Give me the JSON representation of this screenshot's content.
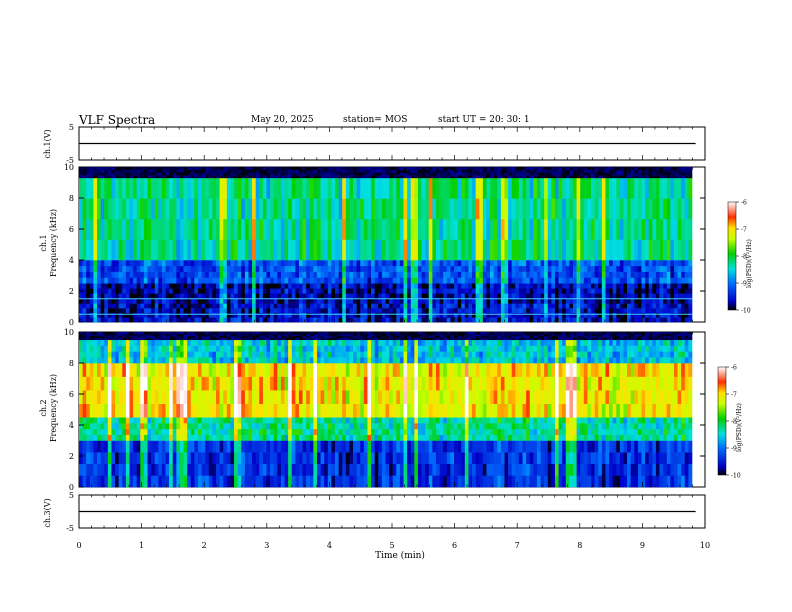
{
  "header": {
    "title": "VLF Spectra",
    "date": "May 20, 2025",
    "station": "station= MOS",
    "start_ut": "start  UT  =   20: 30: 1"
  },
  "chart_data": [
    {
      "type": "line",
      "name": "ch1-waveform",
      "ylabel": "ch.1(V)",
      "ylim": [
        -5,
        5
      ],
      "yticks": [
        "5",
        "-5"
      ],
      "x": [
        0,
        9.85
      ],
      "y": [
        0,
        0
      ]
    },
    {
      "type": "heatmap",
      "name": "ch1-spectrogram",
      "ylabel": "ch.1\nFrequency (kHz)",
      "ylim": [
        0,
        10
      ],
      "yticks": [
        "0",
        "2",
        "4",
        "6",
        "8",
        "10"
      ],
      "xlim": [
        0,
        9.85
      ],
      "colorbar": {
        "label": "log(PSD)(V²/Hz)",
        "ticks": [
          "-6",
          "-7",
          "-8",
          "-9",
          "-10"
        ],
        "range": [
          -10,
          -6
        ]
      },
      "bands": [
        {
          "freq_min": 0,
          "freq_max": 1.2,
          "level": -9.6
        },
        {
          "freq_min": 1.2,
          "freq_max": 2.5,
          "level": -9.7
        },
        {
          "freq_min": 2.5,
          "freq_max": 4,
          "level": -9.2
        },
        {
          "freq_min": 4,
          "freq_max": 9.3,
          "level": -8.3
        },
        {
          "freq_min": 9.3,
          "freq_max": 10,
          "level": -10
        }
      ],
      "lines_khz": [
        0.5,
        1.5
      ]
    },
    {
      "type": "heatmap",
      "name": "ch2-spectrogram",
      "ylabel": "ch.2\nFrequency (kHz)",
      "ylim": [
        0,
        10
      ],
      "yticks": [
        "0",
        "2",
        "4",
        "6",
        "8",
        "10"
      ],
      "xlim": [
        0,
        9.85
      ],
      "colorbar": {
        "label": "log(PSD)(V²/Hz)",
        "ticks": [
          "-6",
          "-7",
          "-8",
          "-9",
          "-10"
        ],
        "range": [
          -10,
          -6
        ]
      },
      "bands": [
        {
          "freq_min": 0,
          "freq_max": 3,
          "level": -9.4
        },
        {
          "freq_min": 3,
          "freq_max": 4.5,
          "level": -8.3
        },
        {
          "freq_min": 4.5,
          "freq_max": 8,
          "level": -7.1
        },
        {
          "freq_min": 8,
          "freq_max": 9.5,
          "level": -8.6
        },
        {
          "freq_min": 9.5,
          "freq_max": 10,
          "level": -10
        }
      ]
    },
    {
      "type": "line",
      "name": "ch3-waveform",
      "ylabel": "ch.3(V)",
      "ylim": [
        -5,
        5
      ],
      "yticks": [
        "5",
        "-5"
      ],
      "x": [
        0,
        9.85
      ],
      "y": [
        0,
        0
      ]
    }
  ],
  "xaxis": {
    "label": "Time (min)",
    "ticks": [
      "0",
      "1",
      "2",
      "3",
      "4",
      "5",
      "6",
      "7",
      "8",
      "9",
      "10"
    ],
    "xlim": [
      0,
      10
    ]
  }
}
